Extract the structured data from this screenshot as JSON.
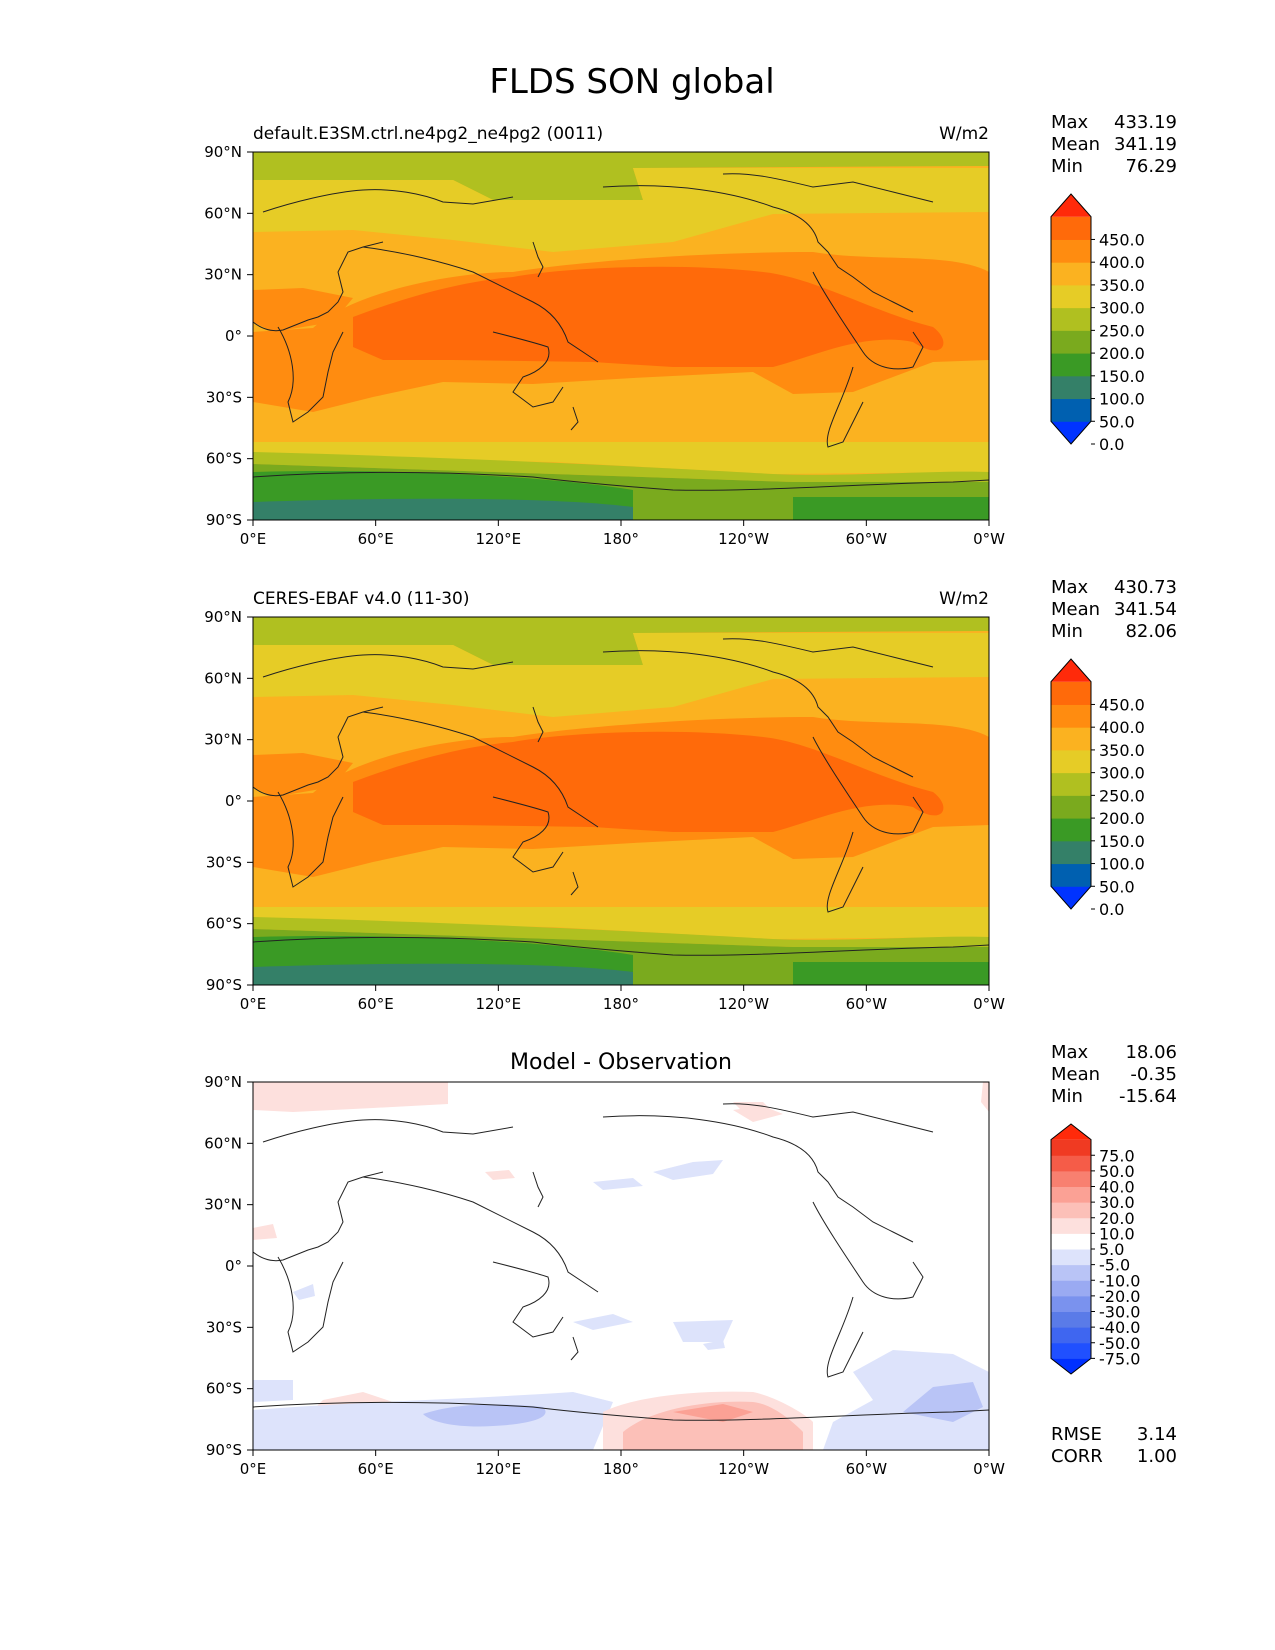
{
  "figure": {
    "title": "FLDS SON global"
  },
  "axes": {
    "lat_ticks": [
      "90°N",
      "60°N",
      "30°N",
      "0°",
      "30°S",
      "60°S",
      "90°S"
    ],
    "lon_ticks": [
      "0°E",
      "60°E",
      "120°E",
      "180°",
      "120°W",
      "60°W",
      "0°W"
    ]
  },
  "panels": [
    {
      "id": "model",
      "left_title": "default.E3SM.ctrl.ne4pg2_ne4pg2 (0011)",
      "center_title": "",
      "units": "W/m2",
      "stats": [
        {
          "label": "Max",
          "value": "433.19"
        },
        {
          "label": "Mean",
          "value": "341.19"
        },
        {
          "label": "Min",
          "value": "76.29"
        }
      ],
      "colorbar": {
        "ticks": [
          "450.0",
          "400.0",
          "350.0",
          "300.0",
          "250.0",
          "200.0",
          "150.0",
          "100.0",
          "50.0",
          "0.0"
        ],
        "colors": [
          "#0033ff",
          "#0060b0",
          "#348068",
          "#3a9a25",
          "#7aaa1e",
          "#b0c020",
          "#e6cc26",
          "#fbb220",
          "#ff8c10",
          "#ff6a0a",
          "#ff2a0a"
        ]
      }
    },
    {
      "id": "obs",
      "left_title": "CERES-EBAF v4.0 (11-30)",
      "center_title": "",
      "units": "W/m2",
      "stats": [
        {
          "label": "Max",
          "value": "430.73"
        },
        {
          "label": "Mean",
          "value": "341.54"
        },
        {
          "label": "Min",
          "value": "82.06"
        }
      ],
      "colorbar": {
        "ticks": [
          "450.0",
          "400.0",
          "350.0",
          "300.0",
          "250.0",
          "200.0",
          "150.0",
          "100.0",
          "50.0",
          "0.0"
        ],
        "colors": [
          "#0033ff",
          "#0060b0",
          "#348068",
          "#3a9a25",
          "#7aaa1e",
          "#b0c020",
          "#e6cc26",
          "#fbb220",
          "#ff8c10",
          "#ff6a0a",
          "#ff2a0a"
        ]
      }
    },
    {
      "id": "diff",
      "left_title": "",
      "center_title": "Model - Observation",
      "units": "",
      "stats": [
        {
          "label": "Max",
          "value": "18.06"
        },
        {
          "label": "Mean",
          "value": "-0.35"
        },
        {
          "label": "Min",
          "value": "-15.64"
        }
      ],
      "extra_stats": [
        {
          "label": "RMSE",
          "value": "3.14"
        },
        {
          "label": "CORR",
          "value": "1.00"
        }
      ],
      "colorbar": {
        "ticks": [
          "75.0",
          "50.0",
          "40.0",
          "30.0",
          "20.0",
          "10.0",
          "5.0",
          "-5.0",
          "-10.0",
          "-20.0",
          "-30.0",
          "-40.0",
          "-50.0",
          "-75.0"
        ],
        "colors": [
          "#0030ff",
          "#2050ff",
          "#3f66f0",
          "#5a7be8",
          "#7a92ee",
          "#9aaaf2",
          "#b9c4f6",
          "#dde3fb",
          "#ffffff",
          "#fde0dd",
          "#fcc0b8",
          "#fba195",
          "#f88070",
          "#f55c48",
          "#f03a22",
          "#ff2a0a"
        ]
      }
    }
  ]
}
